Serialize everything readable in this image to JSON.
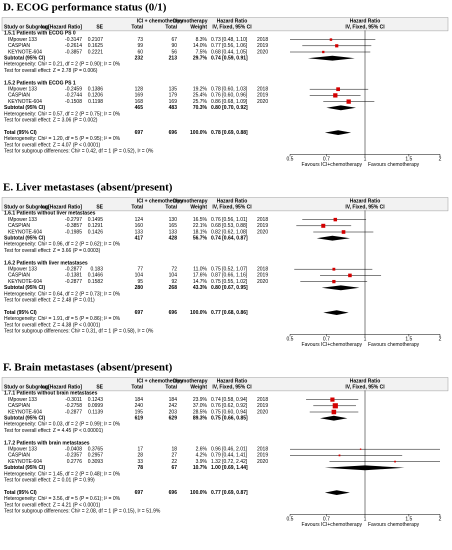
{
  "header": {
    "group": [
      "ICI + chemotherapy",
      "Chemotherapy",
      "Hazard Ratio",
      "Hazard Ratio"
    ],
    "columns": [
      "Study or Subgroup",
      "log[Hazard Ratio]",
      "SE",
      "Total",
      "Total",
      "Weight",
      "IV, Fixed, 95% CI",
      "IV, Fixed, 95% CI"
    ]
  },
  "axis": {
    "xlim": [
      0.5,
      2
    ],
    "xticks": [
      0.5,
      0.7,
      1,
      1.5,
      2
    ],
    "favours": [
      "Favours ICI+chemotherapy",
      "Favours chemotherapy"
    ]
  },
  "panels": [
    {
      "title": "D. ECOG performance status (0/1)",
      "subgroups": [
        {
          "title": "1.5.1 Patients with ECOG PS 0",
          "studies": [
            {
              "study": "IMpower 133",
              "log_hr": -0.3147,
              "se": 0.2107,
              "ici_total": 73,
              "chemo_total": 67,
              "weight": 8.3,
              "weight_label": "8.3%",
              "hr": 0.73,
              "ci": [
                0.48,
                1.1
              ],
              "hr_label": "0.73 [0.48, 1.10]",
              "year": 2018
            },
            {
              "study": "CASPIAN",
              "log_hr": -0.2614,
              "se": 0.1625,
              "ici_total": 99,
              "chemo_total": 90,
              "weight": 14.0,
              "weight_label": "14.0%",
              "hr": 0.77,
              "ci": [
                0.56,
                1.06
              ],
              "hr_label": "0.77 [0.56, 1.06]",
              "year": 2019
            },
            {
              "study": "KEYNOTE-604",
              "log_hr": -0.3857,
              "se": 0.2221,
              "ici_total": 60,
              "chemo_total": 56,
              "weight": 7.5,
              "weight_label": "7.5%",
              "hr": 0.68,
              "ci": [
                0.44,
                1.05
              ],
              "hr_label": "0.68 [0.44, 1.05]",
              "year": 2020
            }
          ],
          "subtotal": {
            "label": "Subtotal (95% CI)",
            "ici_total": 232,
            "chemo_total": 213,
            "weight": 29.7,
            "weight_label": "29.7%",
            "hr": 0.74,
            "ci": [
              0.59,
              0.91
            ],
            "hr_label": "0.74 [0.59, 0.91]"
          },
          "heterogeneity": "Heterogeneity: Chi² = 0.21, df = 2 (P = 0.90); I² = 0%",
          "overall": "Test for overall effect: Z = 2.78 (P = 0.006)"
        },
        {
          "title": "1.5.2 Patients with ECOG PS 1",
          "studies": [
            {
              "study": "IMpower 133",
              "log_hr": -0.2459,
              "se": 0.1386,
              "ici_total": 128,
              "chemo_total": 135,
              "weight": 19.2,
              "weight_label": "19.2%",
              "hr": 0.78,
              "ci": [
                0.6,
                1.03
              ],
              "hr_label": "0.78 [0.60, 1.03]",
              "year": 2018
            },
            {
              "study": "CASPIAN",
              "log_hr": -0.2744,
              "se": 0.1206,
              "ici_total": 169,
              "chemo_total": 179,
              "weight": 25.4,
              "weight_label": "25.4%",
              "hr": 0.76,
              "ci": [
                0.6,
                0.96
              ],
              "hr_label": "0.76 [0.60, 0.96]",
              "year": 2019
            },
            {
              "study": "KEYNOTE-604",
              "log_hr": -0.1508,
              "se": 0.1198,
              "ici_total": 168,
              "chemo_total": 169,
              "weight": 25.7,
              "weight_label": "25.7%",
              "hr": 0.86,
              "ci": [
                0.68,
                1.09
              ],
              "hr_label": "0.86 [0.68, 1.09]",
              "year": 2020
            }
          ],
          "subtotal": {
            "label": "Subtotal (95% CI)",
            "ici_total": 465,
            "chemo_total": 483,
            "weight": 70.3,
            "weight_label": "70.3%",
            "hr": 0.8,
            "ci": [
              0.7,
              0.92
            ],
            "hr_label": "0.80 [0.70, 0.92]"
          },
          "heterogeneity": "Heterogeneity: Chi² = 0.57, df = 2 (P = 0.75); I² = 0%",
          "overall": "Test for overall effect: Z = 3.06 (P = 0.002)"
        }
      ],
      "total": {
        "label": "Total (95% CI)",
        "ici_total": 697,
        "chemo_total": 696,
        "weight": 100.0,
        "weight_label": "100.0%",
        "hr": 0.78,
        "ci": [
          0.69,
          0.88
        ],
        "hr_label": "0.78 [0.69, 0.88]"
      },
      "heterogeneity": "Heterogeneity: Chi² = 1.20, df = 5 (P = 0.95); I² = 0%",
      "overall": "Test for overall effect: Z = 4.07 (P < 0.0001)",
      "subgroup_diff": "Test for subgroup differences: Chi² = 0.42, df = 1 (P = 0.52), I² = 0%"
    },
    {
      "title": "E. Liver metastases (absent/present)",
      "subgroups": [
        {
          "title": "1.6.1 Patients without liver metastases",
          "studies": [
            {
              "study": "IMpower 133",
              "log_hr": -0.2797,
              "se": 0.1495,
              "ici_total": 124,
              "chemo_total": 130,
              "weight": 16.5,
              "weight_label": "16.5%",
              "hr": 0.76,
              "ci": [
                0.56,
                1.01
              ],
              "hr_label": "0.76 [0.56, 1.01]",
              "year": 2018
            },
            {
              "study": "CASPIAN",
              "log_hr": -0.3857,
              "se": 0.1291,
              "ici_total": 160,
              "chemo_total": 165,
              "weight": 22.1,
              "weight_label": "22.1%",
              "hr": 0.68,
              "ci": [
                0.53,
                0.88
              ],
              "hr_label": "0.68 [0.53, 0.88]",
              "year": 2019
            },
            {
              "study": "KEYNOTE-604",
              "log_hr": -0.1985,
              "se": 0.1426,
              "ici_total": 133,
              "chemo_total": 133,
              "weight": 18.1,
              "weight_label": "18.1%",
              "hr": 0.82,
              "ci": [
                0.62,
                1.08
              ],
              "hr_label": "0.82 [0.62, 1.08]",
              "year": 2020
            }
          ],
          "subtotal": {
            "label": "Subtotal (95% CI)",
            "ici_total": 417,
            "chemo_total": 428,
            "weight": 56.7,
            "weight_label": "56.7%",
            "hr": 0.74,
            "ci": [
              0.64,
              0.87
            ],
            "hr_label": "0.74 [0.64, 0.87]"
          },
          "heterogeneity": "Heterogeneity: Chi² = 0.96, df = 2 (P = 0.62); I² = 0%",
          "overall": "Test for overall effect: Z = 3.66 (P = 0.0003)"
        },
        {
          "title": "1.6.2 Patients with liver metastases",
          "studies": [
            {
              "study": "IMpower 133",
              "log_hr": -0.2877,
              "se": 0.183,
              "ici_total": 77,
              "chemo_total": 72,
              "weight": 11.0,
              "weight_label": "11.0%",
              "hr": 0.75,
              "ci": [
                0.52,
                1.07
              ],
              "hr_label": "0.75 [0.52, 1.07]",
              "year": 2018
            },
            {
              "study": "CASPIAN",
              "log_hr": -0.1381,
              "se": 0.1466,
              "ici_total": 104,
              "chemo_total": 104,
              "weight": 17.6,
              "weight_label": "17.6%",
              "hr": 0.87,
              "ci": [
                0.66,
                1.16
              ],
              "hr_label": "0.87 [0.66, 1.16]",
              "year": 2019
            },
            {
              "study": "KEYNOTE-604",
              "log_hr": -0.2877,
              "se": 0.1582,
              "ici_total": 95,
              "chemo_total": 92,
              "weight": 14.7,
              "weight_label": "14.7%",
              "hr": 0.75,
              "ci": [
                0.55,
                1.02
              ],
              "hr_label": "0.75 [0.55, 1.02]",
              "year": 2020
            }
          ],
          "subtotal": {
            "label": "Subtotal (95% CI)",
            "ici_total": 280,
            "chemo_total": 268,
            "weight": 43.3,
            "weight_label": "43.3%",
            "hr": 0.8,
            "ci": [
              0.67,
              0.95
            ],
            "hr_label": "0.80 [0.67, 0.95]"
          },
          "heterogeneity": "Heterogeneity: Chi² = 0.64, df = 2 (P = 0.73); I² = 0%",
          "overall": "Test for overall effect: Z = 2.48 (P = 0.01)"
        }
      ],
      "total": {
        "label": "Total (95% CI)",
        "ici_total": 697,
        "chemo_total": 696,
        "weight": 100.0,
        "weight_label": "100.0%",
        "hr": 0.77,
        "ci": [
          0.68,
          0.86
        ],
        "hr_label": "0.77 [0.68, 0.86]"
      },
      "heterogeneity": "Heterogeneity: Chi² = 1.91, df = 5 (P = 0.86); I² = 0%",
      "overall": "Test for overall effect: Z = 4.38 (P < 0.0001)",
      "subgroup_diff": "Test for subgroup differences: Chi² = 0.31, df = 1 (P = 0.58), I² = 0%"
    },
    {
      "title": "F. Brain metastases (absent/present)",
      "subgroups": [
        {
          "title": "1.7.1 Patients without brain metastases",
          "studies": [
            {
              "study": "IMpower 133",
              "log_hr": -0.3011,
              "se": 0.1243,
              "ici_total": 184,
              "chemo_total": 184,
              "weight": 23.9,
              "weight_label": "23.9%",
              "hr": 0.74,
              "ci": [
                0.58,
                0.94
              ],
              "hr_label": "0.74 [0.58, 0.94]",
              "year": 2018
            },
            {
              "study": "CASPIAN",
              "log_hr": -0.2758,
              "se": 0.0999,
              "ici_total": 240,
              "chemo_total": 242,
              "weight": 37.0,
              "weight_label": "37.0%",
              "hr": 0.76,
              "ci": [
                0.62,
                0.92
              ],
              "hr_label": "0.76 [0.62, 0.92]",
              "year": 2019
            },
            {
              "study": "KEYNOTE-604",
              "log_hr": -0.2877,
              "se": 0.1139,
              "ici_total": 195,
              "chemo_total": 203,
              "weight": 28.5,
              "weight_label": "28.5%",
              "hr": 0.75,
              "ci": [
                0.6,
                0.94
              ],
              "hr_label": "0.75 [0.60, 0.94]",
              "year": 2020
            }
          ],
          "subtotal": {
            "label": "Subtotal (95% CI)",
            "ici_total": 619,
            "chemo_total": 629,
            "weight": 89.3,
            "weight_label": "89.3%",
            "hr": 0.75,
            "ci": [
              0.66,
              0.85
            ],
            "hr_label": "0.75 [0.66, 0.85]"
          },
          "heterogeneity": "Heterogeneity: Chi² = 0.03, df = 2 (P = 0.99); I² = 0%",
          "overall": "Test for overall effect: Z = 4.45 (P < 0.00001)"
        },
        {
          "title": "1.7.2 Patients with brain metastases",
          "studies": [
            {
              "study": "IMpower 133",
              "log_hr": -0.0408,
              "se": 0.3765,
              "ici_total": 17,
              "chemo_total": 18,
              "weight": 2.6,
              "weight_label": "2.6%",
              "hr": 0.96,
              "ci": [
                0.46,
                2.01
              ],
              "hr_label": "0.96 [0.46, 2.01]",
              "year": 2018
            },
            {
              "study": "CASPIAN",
              "log_hr": -0.2357,
              "se": 0.2957,
              "ici_total": 28,
              "chemo_total": 27,
              "weight": 4.2,
              "weight_label": "4.2%",
              "hr": 0.79,
              "ci": [
                0.44,
                1.41
              ],
              "hr_label": "0.79 [0.44, 1.41]",
              "year": 2019
            },
            {
              "study": "KEYNOTE-604",
              "log_hr": 0.2776,
              "se": 0.3093,
              "ici_total": 33,
              "chemo_total": 22,
              "weight": 3.9,
              "weight_label": "3.9%",
              "hr": 1.32,
              "ci": [
                0.72,
                2.42
              ],
              "hr_label": "1.32 [0.72, 2.42]",
              "year": 2020
            }
          ],
          "subtotal": {
            "label": "Subtotal (95% CI)",
            "ici_total": 78,
            "chemo_total": 67,
            "weight": 10.7,
            "weight_label": "10.7%",
            "hr": 1.0,
            "ci": [
              0.69,
              1.44
            ],
            "hr_label": "1.00 [0.69, 1.44]"
          },
          "heterogeneity": "Heterogeneity: Chi² = 1.45, df = 2 (P = 0.48); I² = 0%",
          "overall": "Test for overall effect: Z = 0.01 (P = 0.99)"
        }
      ],
      "total": {
        "label": "Total (95% CI)",
        "ici_total": 697,
        "chemo_total": 696,
        "weight": 100.0,
        "weight_label": "100.0%",
        "hr": 0.77,
        "ci": [
          0.69,
          0.87
        ],
        "hr_label": "0.77 [0.69, 0.87]"
      },
      "heterogeneity": "Heterogeneity: Chi² = 3.56, df = 5 (P = 0.61); I² = 0%",
      "overall": "Test for overall effect: Z = 4.21 (P < 0.0001)",
      "subgroup_diff": "Test for subgroup differences: Chi² = 2.08, df = 1 (P = 0.15), I² = 51.9%"
    }
  ]
}
